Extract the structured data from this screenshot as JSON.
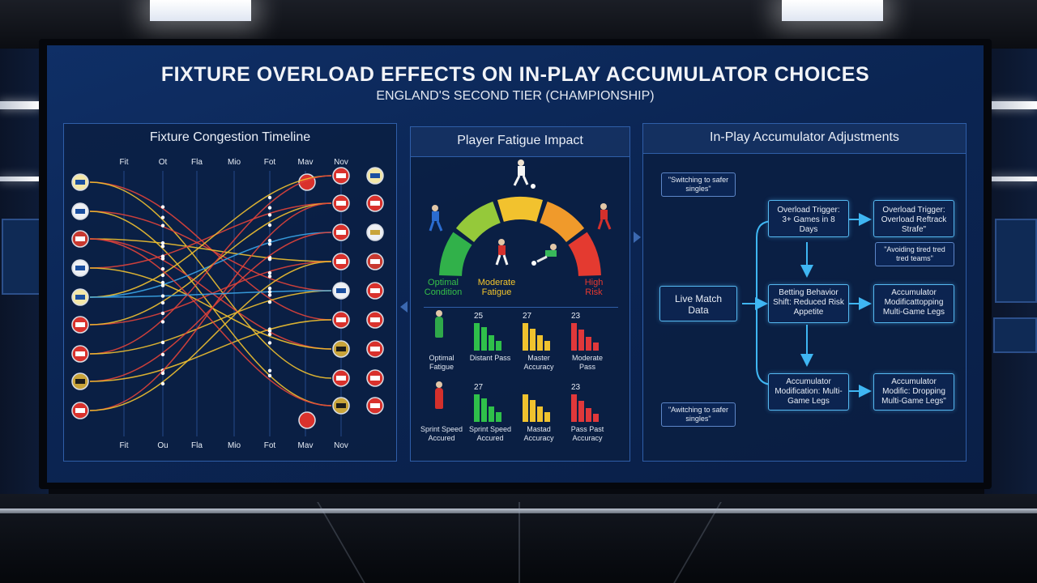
{
  "title": "FIXTURE OVERLOAD EFFECTS ON IN-PLAY ACCUMULATOR CHOICES",
  "subtitle": "ENGLAND'S SECOND TIER (CHAMPIONSHIP)",
  "panels": {
    "timeline": {
      "title": "Fixture Congestion Timeline",
      "top_labels": [
        "Fit",
        "Ot",
        "Fla",
        "Mio",
        "Fot",
        "Mav",
        "Nov"
      ],
      "bottom_labels": [
        "Fit",
        "Ou",
        "Fla",
        "Mio",
        "Fot",
        "Mav",
        "Nov"
      ],
      "line_colors": [
        "#e0423a",
        "#f0c030",
        "#3aa5e8"
      ]
    },
    "fatigue": {
      "title": "Player Fatigue Impact",
      "gauge_labels": {
        "left": "Optimal Condition",
        "mid": "Moderate Fatigue",
        "right": "High Risk"
      },
      "gauge_colors": [
        "#31b14a",
        "#95c93a",
        "#f2c22e",
        "#f09a2b",
        "#e43a30"
      ],
      "row1": [
        {
          "label": "Optimal Fatigue"
        },
        {
          "value": "25",
          "label": "Distant Pass",
          "bars": [
            1.0,
            0.85,
            0.55,
            0.35
          ],
          "color": "#2fc04a"
        },
        {
          "value": "27",
          "label": "Master Accuracy",
          "bars": [
            1.0,
            0.8,
            0.55,
            0.35
          ],
          "color": "#f0c22e"
        },
        {
          "value": "23",
          "label": "Moderate Pass",
          "bars": [
            1.0,
            0.75,
            0.5,
            0.3
          ],
          "color": "#e0383a"
        }
      ],
      "row2": [
        {
          "label": "Sprint Speed Accured"
        },
        {
          "value": "27",
          "label": "Sprint Speed Accured",
          "bars": [
            1.0,
            0.85,
            0.55,
            0.35
          ],
          "color": "#2fc04a"
        },
        {
          "value": "",
          "label": "Mastad Accuracy",
          "bars": [
            1.0,
            0.8,
            0.55,
            0.35
          ],
          "color": "#f0c22e"
        },
        {
          "value": "23",
          "label": "Pass Past Accuracy",
          "bars": [
            1.0,
            0.75,
            0.5,
            0.3
          ],
          "color": "#e0383a"
        }
      ]
    },
    "accumulator": {
      "title": "In-Play Accumulator Adjustments",
      "bubble_top": "\"Switching to safer singles\"",
      "bubble_bottom": "\"Awitching to safer singles\"",
      "bubble_mid": "\"Avoiding tired tred tred teams\"",
      "live": "Live Match Data",
      "trigger1": "Overload Trigger: 3+ Games in 8 Days",
      "trigger2": "Overload Trigger: Overload Reftrack Strafe\"",
      "betting": "Betting Behavior Shift: Reduced Risk Appetite",
      "accum1": "Accumulator Modificattopping Multi-Game Legs",
      "accum2": "Accumulator Modification: Multi-Game Legs",
      "accum3": "Accumulator Modific: Dropping Multi-Game Legs\""
    }
  }
}
